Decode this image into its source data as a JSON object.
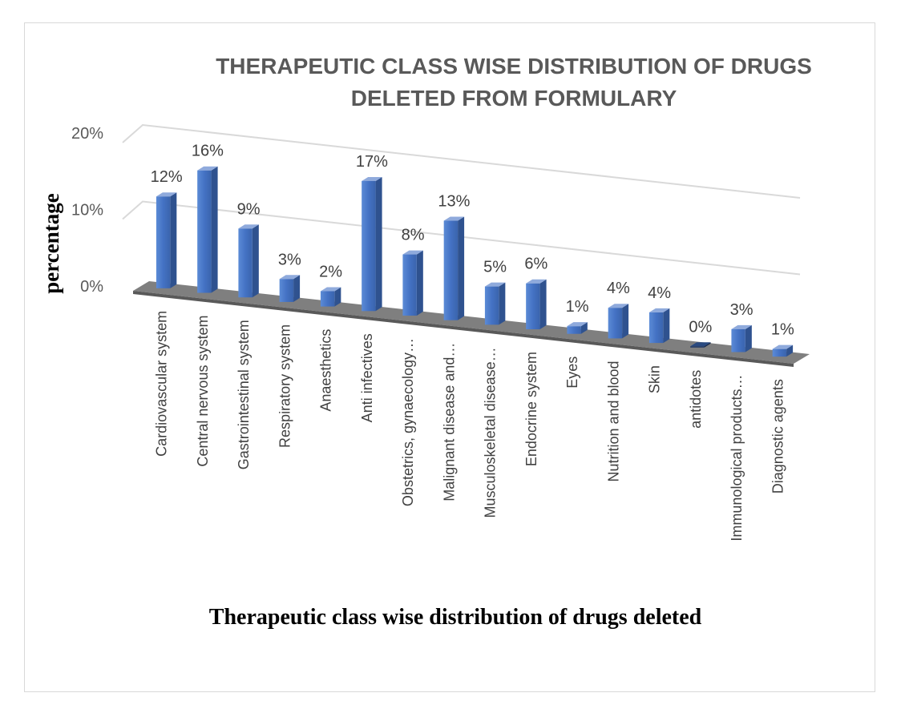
{
  "chart_data": {
    "type": "bar",
    "title": "THERAPEUTIC CLASS WISE DISTRIBUTION OF DRUGS DELETED FROM FORMULARY",
    "title_lines": [
      "THERAPEUTIC CLASS WISE DISTRIBUTION OF DRUGS",
      "DELETED FROM FORMULARY"
    ],
    "xlabel": "Therapeutic class wise distribution of drugs deleted",
    "ylabel": "percentage",
    "ylim": [
      0,
      20
    ],
    "y_ticks": [
      "0%",
      "10%",
      "20%"
    ],
    "grid": true,
    "style": "3d-clustered-column",
    "bar_color": "#4472c4",
    "categories": [
      "Cardiovascular system",
      "Central nervous system",
      "Gastrointestinal system",
      "Respiratory system",
      "Anaesthetics",
      "Anti infectives",
      "Obstetrics, gynaecology…",
      "Malignant disease and…",
      "Musculoskeletal disease…",
      "Endocrine system",
      "Eyes",
      "Nutrition and blood",
      "Skin",
      "antidotes",
      "Immunological products…",
      "Diagnostic agents"
    ],
    "values": [
      12,
      16,
      9,
      3,
      2,
      17,
      8,
      13,
      5,
      6,
      1,
      4,
      4,
      0,
      3,
      1
    ],
    "data_labels": [
      "12%",
      "16%",
      "9%",
      "3%",
      "2%",
      "17%",
      "8%",
      "13%",
      "5%",
      "6%",
      "1%",
      "4%",
      "4%",
      "0%",
      "3%",
      "1%"
    ]
  }
}
